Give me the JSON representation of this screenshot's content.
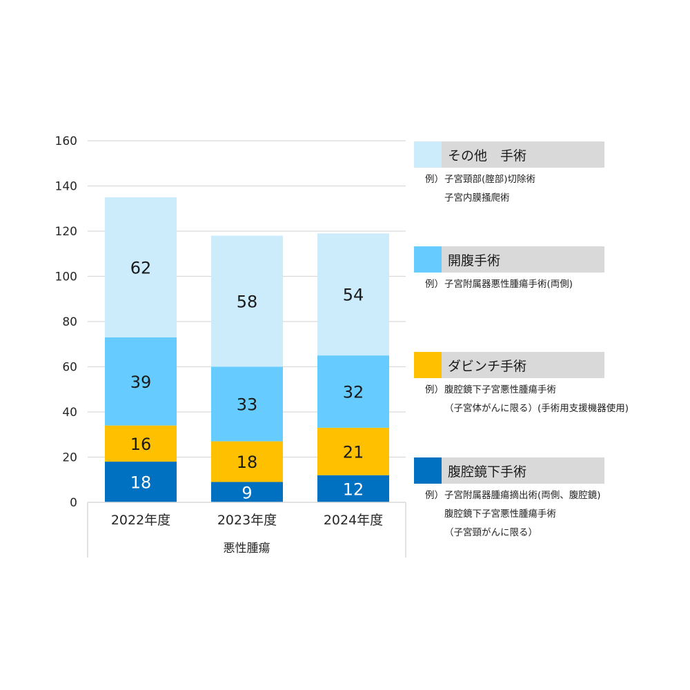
{
  "chart_data": {
    "type": "bar",
    "stacked": true,
    "categories": [
      "2022年度",
      "2023年度",
      "2024年度"
    ],
    "group_label": "悪性腫瘍",
    "ylim": [
      0,
      160
    ],
    "yticks": [
      "0",
      "20",
      "40",
      "60",
      "80",
      "100",
      "120",
      "140",
      "160"
    ],
    "grid": true,
    "legend_position": "right",
    "series": [
      {
        "name": "腹腔鏡下手術",
        "color": "#0070c0",
        "label_color": "#ffffff",
        "values": [
          18,
          9,
          12
        ],
        "labels": [
          "18",
          "9",
          "12"
        ]
      },
      {
        "name": "ダビンチ手術",
        "color": "#ffc000",
        "label_color": "#1a1a1a",
        "values": [
          16,
          18,
          21
        ],
        "labels": [
          "16",
          "18",
          "21"
        ]
      },
      {
        "name": "開腹手術",
        "color": "#66ccff",
        "label_color": "#1a1a1a",
        "values": [
          39,
          33,
          32
        ],
        "labels": [
          "39",
          "33",
          "32"
        ]
      },
      {
        "name": "その他　手術",
        "color": "#ccecfc",
        "label_color": "#1a1a1a",
        "values": [
          62,
          58,
          54
        ],
        "labels": [
          "62",
          "58",
          "54"
        ]
      }
    ]
  },
  "legend": [
    {
      "label": "その他　手術",
      "color": "#ccecfc",
      "examples": [
        {
          "prefix": "例）",
          "text": "子宮頸部(腟部)切除術"
        },
        {
          "prefix": "",
          "text": "子宮内膜掻爬術"
        }
      ]
    },
    {
      "label": "開腹手術",
      "color": "#66ccff",
      "examples": [
        {
          "prefix": "例）",
          "text": "子宮附属器悪性腫瘍手術(両側)"
        }
      ]
    },
    {
      "label": "ダビンチ手術",
      "color": "#ffc000",
      "examples": [
        {
          "prefix": "例）",
          "text": "腹腔鏡下子宮悪性腫瘍手術"
        },
        {
          "prefix": "",
          "text": "（子宮体がんに限る）(手術用支援機器使用)"
        }
      ]
    },
    {
      "label": "腹腔鏡下手術",
      "color": "#0070c0",
      "examples": [
        {
          "prefix": "例）",
          "text": "子宮附属器腫瘍摘出術(両側、腹腔鏡)"
        },
        {
          "prefix": "",
          "text": "腹腔鏡下子宮悪性腫瘍手術"
        },
        {
          "prefix": "",
          "text": "（子宮頸がんに限る）"
        }
      ]
    }
  ]
}
